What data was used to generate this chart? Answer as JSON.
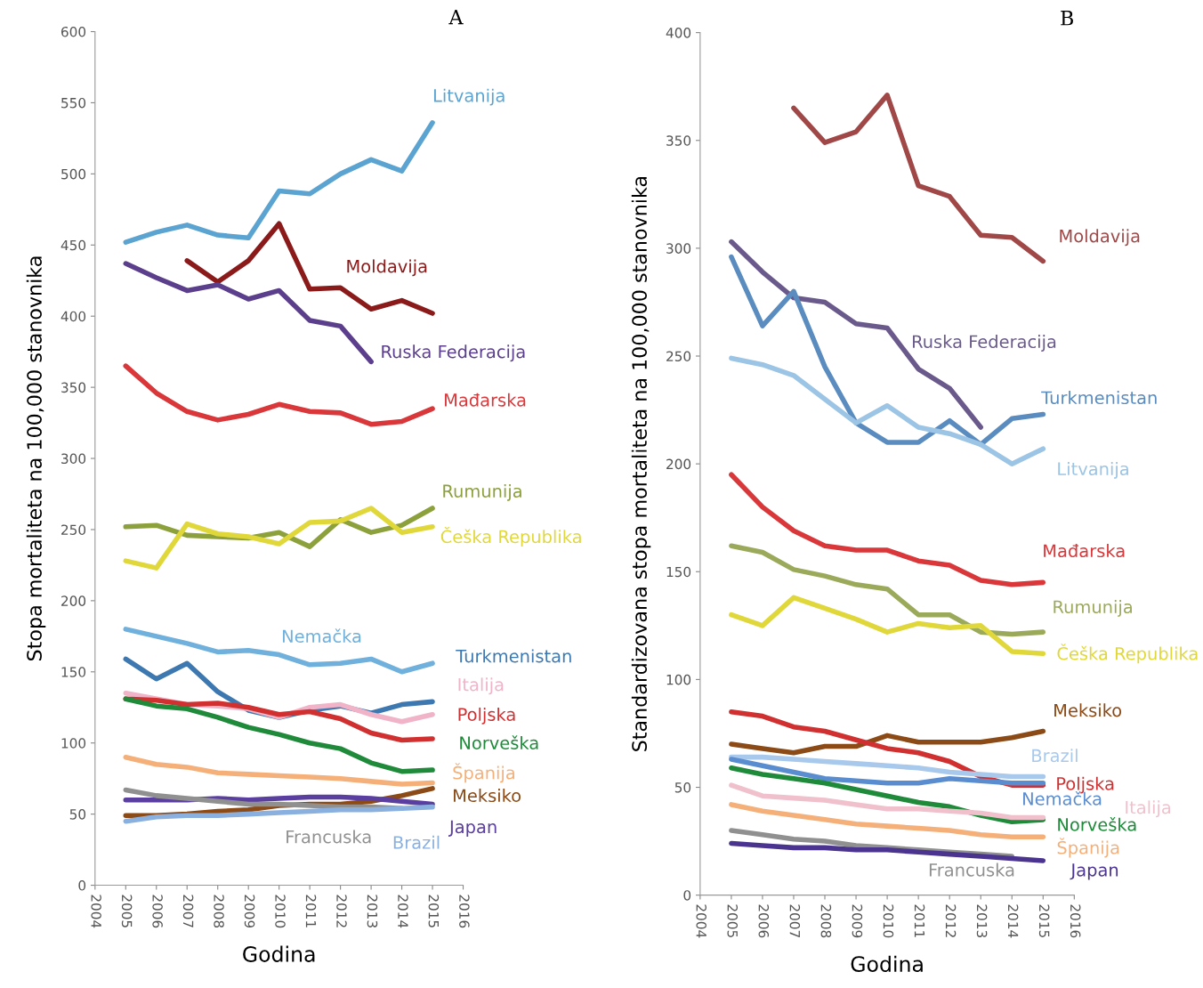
{
  "chart_data": [
    {
      "type": "line",
      "title": "A",
      "xlabel": "Godina",
      "ylabel": "Stopa mortaliteta na 100,000 stanovnika",
      "xlim": [
        2004,
        2016
      ],
      "xticks": [
        2004,
        2005,
        2006,
        2007,
        2008,
        2009,
        2010,
        2011,
        2012,
        2013,
        2014,
        2015,
        2016
      ],
      "ylim": [
        0,
        600
      ],
      "yticks": [
        0,
        50,
        100,
        150,
        200,
        250,
        300,
        350,
        400,
        450,
        500,
        550,
        600
      ],
      "grid": false,
      "legend": false,
      "marker": "none",
      "line_style": "solid",
      "x": [
        2005,
        2006,
        2007,
        2008,
        2009,
        2010,
        2011,
        2012,
        2013,
        2014,
        2015
      ],
      "series": [
        {
          "name": "Litvanija",
          "color": "#5ba3d0",
          "values": [
            452,
            459,
            464,
            457,
            455,
            488,
            486,
            500,
            510,
            502,
            536
          ]
        },
        {
          "name": "Moldavija",
          "color": "#8b1a1a",
          "x": [
            2007,
            2008,
            2009,
            2010,
            2011,
            2012,
            2013,
            2014,
            2015
          ],
          "values": [
            439,
            424,
            439,
            465,
            419,
            420,
            405,
            411,
            402
          ]
        },
        {
          "name": "Ruska Federacija",
          "color": "#5b3f8c",
          "x": [
            2005,
            2006,
            2007,
            2008,
            2009,
            2010,
            2011,
            2012,
            2013
          ],
          "values": [
            437,
            427,
            418,
            422,
            412,
            418,
            397,
            393,
            368
          ]
        },
        {
          "name": "Mađarska",
          "color": "#d9373a",
          "values": [
            365,
            346,
            333,
            327,
            331,
            338,
            333,
            332,
            324,
            326,
            335
          ]
        },
        {
          "name": "Rumunija",
          "color": "#8ca03c",
          "values": [
            252,
            253,
            246,
            245,
            244,
            248,
            238,
            257,
            248,
            253,
            265
          ]
        },
        {
          "name": "Češka Republika",
          "color": "#e0d83a",
          "values": [
            228,
            223,
            254,
            247,
            245,
            240,
            255,
            256,
            265,
            248,
            252
          ]
        },
        {
          "name": "Nemačka",
          "color": "#6fb0dc",
          "values": [
            180,
            175,
            170,
            164,
            165,
            162,
            155,
            156,
            159,
            150,
            156
          ]
        },
        {
          "name": "Turkmenistan",
          "color": "#3e78b0",
          "values": [
            159,
            145,
            156,
            136,
            123,
            118,
            123,
            126,
            121,
            127,
            129
          ]
        },
        {
          "name": "Italija",
          "color": "#f0b3c8",
          "values": [
            135,
            null,
            127,
            126,
            124,
            118,
            125,
            127,
            120,
            115,
            120
          ]
        },
        {
          "name": "Poljska",
          "color": "#d13030",
          "values": [
            131,
            130,
            127,
            128,
            125,
            120,
            122,
            117,
            107,
            102,
            103
          ]
        },
        {
          "name": "Norveška",
          "color": "#1e8a3a",
          "values": [
            131,
            126,
            124,
            118,
            111,
            106,
            100,
            96,
            86,
            80,
            81
          ]
        },
        {
          "name": "Španija",
          "color": "#f5b07a",
          "values": [
            90,
            85,
            83,
            79,
            78,
            77,
            76,
            75,
            73,
            71,
            72
          ]
        },
        {
          "name": "Meksiko",
          "color": "#8b4a16",
          "values": [
            49,
            49,
            50,
            52,
            53,
            56,
            57,
            57,
            59,
            63,
            68
          ]
        },
        {
          "name": "Japan",
          "color": "#5a3ea0",
          "values": [
            60,
            60,
            60,
            61,
            60,
            61,
            62,
            62,
            61,
            59,
            57
          ]
        },
        {
          "name": "Francuska",
          "color": "#909090",
          "x": [
            2005,
            2006,
            2007,
            2008,
            2009,
            2010,
            2011,
            2012,
            2013,
            2014
          ],
          "values": [
            67,
            63,
            61,
            59,
            57,
            57,
            56,
            55,
            55,
            54
          ]
        },
        {
          "name": "Brazil",
          "color": "#8ab0e0",
          "values": [
            45,
            48,
            49,
            49,
            50,
            51,
            52,
            53,
            53,
            54,
            55
          ]
        }
      ]
    },
    {
      "type": "line",
      "title": "B",
      "xlabel": "Godina",
      "ylabel": "Standardizovana stopa mortaliteta na 100,000 stanovnika",
      "xlim": [
        2004,
        2016
      ],
      "xticks": [
        2004,
        2005,
        2006,
        2007,
        2008,
        2009,
        2010,
        2011,
        2012,
        2013,
        2014,
        2015,
        2016
      ],
      "ylim": [
        0,
        400
      ],
      "yticks": [
        0,
        50,
        100,
        150,
        200,
        250,
        300,
        350,
        400
      ],
      "grid": false,
      "legend": false,
      "marker": "none",
      "line_style": "solid",
      "x": [
        2005,
        2006,
        2007,
        2008,
        2009,
        2010,
        2011,
        2012,
        2013,
        2014,
        2015
      ],
      "series": [
        {
          "name": "Moldavija",
          "color": "#a04848",
          "x": [
            2007,
            2008,
            2009,
            2010,
            2011,
            2012,
            2013,
            2014,
            2015
          ],
          "values": [
            365,
            349,
            354,
            371,
            329,
            324,
            306,
            305,
            294
          ]
        },
        {
          "name": "Ruska Federacija",
          "color": "#6a5a8c",
          "x": [
            2005,
            2006,
            2007,
            2008,
            2009,
            2010,
            2011,
            2012,
            2013
          ],
          "values": [
            303,
            289,
            277,
            275,
            265,
            263,
            244,
            235,
            217
          ]
        },
        {
          "name": "Turkmenistan",
          "color": "#5a8cc0",
          "values": [
            296,
            264,
            280,
            245,
            219,
            210,
            210,
            220,
            209,
            221,
            223
          ]
        },
        {
          "name": "Litvanija",
          "color": "#9cc4e4",
          "values": [
            249,
            246,
            241,
            230,
            219,
            227,
            217,
            214,
            209,
            200,
            207
          ]
        },
        {
          "name": "Mađarska",
          "color": "#d9373a",
          "values": [
            195,
            180,
            169,
            162,
            160,
            160,
            155,
            153,
            146,
            144,
            145
          ]
        },
        {
          "name": "Rumunija",
          "color": "#9aaa5a",
          "values": [
            162,
            159,
            151,
            148,
            144,
            142,
            130,
            130,
            122,
            121,
            122
          ]
        },
        {
          "name": "Češka Republika",
          "color": "#e0d83a",
          "values": [
            130,
            125,
            138,
            133,
            128,
            122,
            126,
            124,
            125,
            113,
            112
          ]
        },
        {
          "name": "Meksiko",
          "color": "#8b4a16",
          "values": [
            70,
            68,
            66,
            69,
            69,
            74,
            71,
            71,
            71,
            73,
            76
          ]
        },
        {
          "name": "Poljska",
          "color": "#d13030",
          "values": [
            85,
            83,
            78,
            76,
            72,
            68,
            66,
            62,
            55,
            51,
            51
          ]
        },
        {
          "name": "Brazil",
          "color": "#a8c8ec",
          "values": [
            64,
            64,
            63,
            62,
            61,
            60,
            59,
            57,
            56,
            55,
            55
          ]
        },
        {
          "name": "Nemačka",
          "color": "#5a8cd0",
          "values": [
            63,
            60,
            57,
            54,
            53,
            52,
            52,
            54,
            53,
            52,
            52
          ]
        },
        {
          "name": "Norveška",
          "color": "#1e8a3a",
          "values": [
            59,
            56,
            54,
            52,
            49,
            46,
            43,
            41,
            37,
            34,
            35
          ]
        },
        {
          "name": "Italija",
          "color": "#f0c0cc",
          "values": [
            51,
            46,
            45,
            44,
            42,
            40,
            40,
            39,
            38,
            36,
            36
          ]
        },
        {
          "name": "Španija",
          "color": "#f5b07a",
          "values": [
            42,
            39,
            37,
            35,
            33,
            32,
            31,
            30,
            28,
            27,
            27
          ]
        },
        {
          "name": "Francuska",
          "color": "#909090",
          "x": [
            2005,
            2006,
            2007,
            2008,
            2009,
            2010,
            2011,
            2012,
            2013,
            2014
          ],
          "values": [
            30,
            28,
            26,
            25,
            23,
            22,
            21,
            20,
            19,
            18
          ]
        },
        {
          "name": "Japan",
          "color": "#4a3490",
          "values": [
            24,
            23,
            22,
            22,
            21,
            21,
            20,
            19,
            18,
            17,
            16
          ]
        }
      ]
    }
  ]
}
